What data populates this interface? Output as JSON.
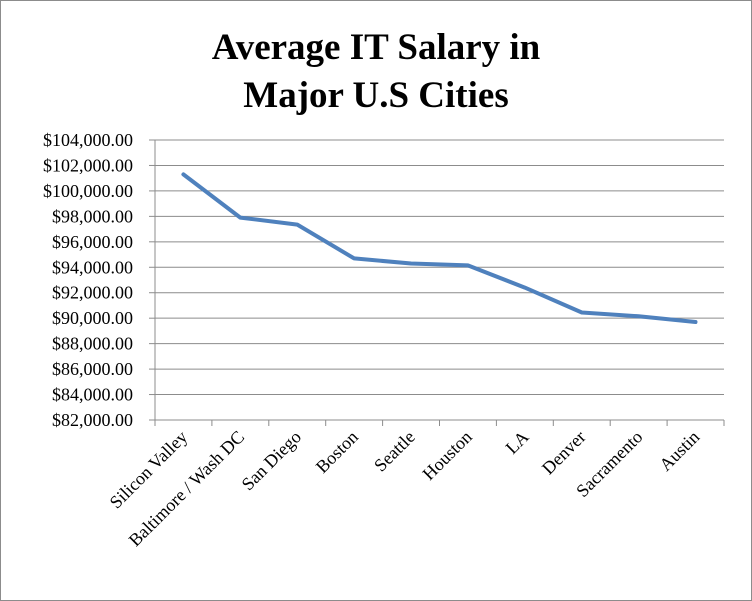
{
  "chart_data": {
    "type": "line",
    "title_lines": [
      "Average IT Salary in",
      "Major U.S Cities"
    ],
    "categories": [
      "Silicon Valley",
      "Baltimore / Wash DC",
      "San Diego",
      "Boston",
      "Seattle",
      "Houston",
      "LA",
      "Denver",
      "Sacramento",
      "Austin"
    ],
    "series": [
      {
        "values": [
          101300,
          97900,
          97350,
          94700,
          94300,
          94150,
          92400,
          90450,
          90150,
          89700
        ]
      }
    ],
    "y_ticks": [
      "$82,000.00",
      "$84,000.00",
      "$86,000.00",
      "$88,000.00",
      "$90,000.00",
      "$92,000.00",
      "$94,000.00",
      "$96,000.00",
      "$98,000.00",
      "$100,000.00",
      "$102,000.00",
      "$104,000.00"
    ],
    "ylim": [
      82000,
      104000
    ],
    "y_step": 2000,
    "grid": true,
    "legend": "none",
    "line_color": "#4f81bd"
  }
}
